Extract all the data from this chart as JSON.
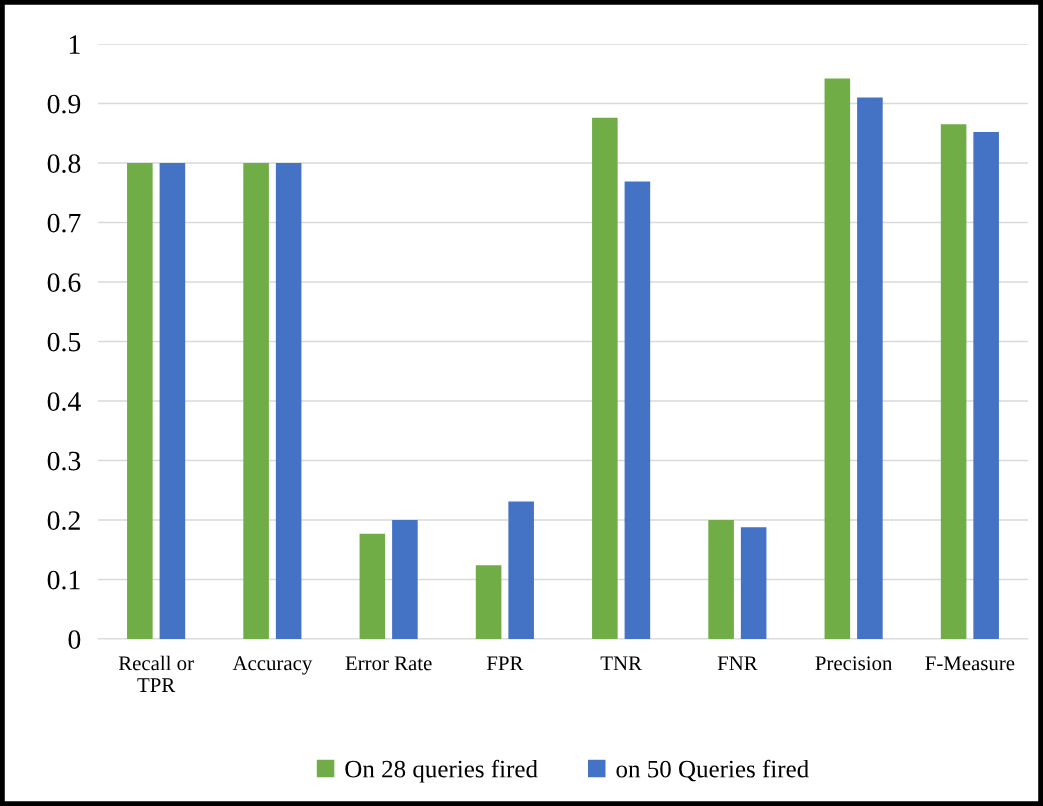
{
  "chart_data": {
    "type": "bar",
    "categories": [
      "Recall or\nTPR",
      "Accuracy",
      "Error Rate",
      "FPR",
      "TNR",
      "FNR",
      "Precision",
      "F-Measure"
    ],
    "series": [
      {
        "name": "On 28 queries fired",
        "color": "#70ad47",
        "values": [
          0.8,
          0.8,
          0.177,
          0.124,
          0.876,
          0.2,
          0.942,
          0.865
        ]
      },
      {
        "name": "on 50 Queries fired",
        "color": "#4472c4",
        "values": [
          0.8,
          0.8,
          0.2,
          0.231,
          0.769,
          0.188,
          0.91,
          0.852
        ]
      }
    ],
    "ylim": [
      0,
      1
    ],
    "yticks": [
      0,
      0.1,
      0.2,
      0.3,
      0.4,
      0.5,
      0.6,
      0.7,
      0.8,
      0.9,
      1
    ],
    "grid": "y",
    "legend": "bottom"
  }
}
